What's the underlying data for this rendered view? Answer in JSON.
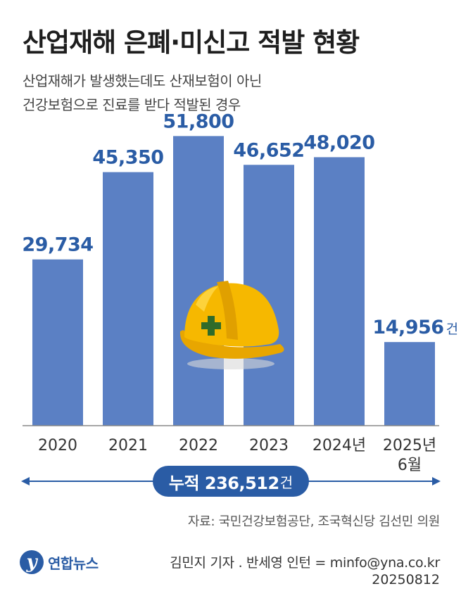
{
  "title": "산업재해 은폐·미신고 적발 현황",
  "subtitle": {
    "line1": "산업재해가 발생했는데도 산재보험이 아닌",
    "line2": "건강보험으로 진료를 받다 적발된 경우"
  },
  "chart_data": {
    "type": "bar",
    "categories": [
      "2020",
      "2021",
      "2022",
      "2023",
      "2024년",
      "2025년\n6월"
    ],
    "values": [
      29734,
      45350,
      51800,
      46652,
      48020,
      14956
    ],
    "value_labels": [
      "29,734",
      "45,350",
      "51,800",
      "46,652",
      "48,020",
      "14,956"
    ],
    "unit": "건",
    "ylim": [
      0,
      56000
    ],
    "grid": false,
    "bar_color": "#5b80c4",
    "label_color": "#2a5ca5"
  },
  "total": {
    "label": "누적 236,512",
    "unit": "건"
  },
  "source": "자료: 국민건강보험공단, 조국혁신당 김선민 의원",
  "logo": {
    "mark": "y",
    "text": "연합뉴스"
  },
  "credit": "김민지 기자 . 반세영 인턴 = minfo@yna.co.kr",
  "date": "20250812",
  "colors": {
    "accent": "#2a5ca5",
    "helmet": "#f6b800",
    "cross": "#2f6b2a"
  },
  "icons": {
    "decoration": "hard-hat-icon"
  }
}
